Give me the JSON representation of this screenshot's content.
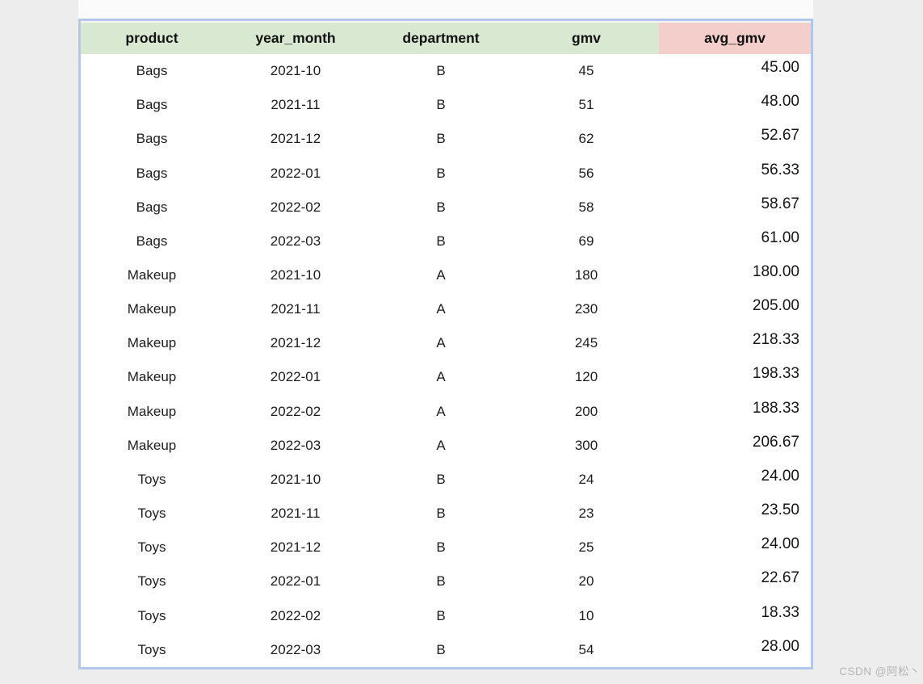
{
  "chart_data": {
    "type": "table",
    "columns": [
      "product",
      "year_month",
      "department",
      "gmv",
      "avg_gmv"
    ],
    "header_style": {
      "green_columns": [
        "product",
        "year_month",
        "department",
        "gmv"
      ],
      "pink_column": "avg_gmv"
    },
    "rows": [
      {
        "product": "Bags",
        "year_month": "2021-10",
        "department": "B",
        "gmv": "45",
        "avg_gmv": "45.00"
      },
      {
        "product": "Bags",
        "year_month": "2021-11",
        "department": "B",
        "gmv": "51",
        "avg_gmv": "48.00"
      },
      {
        "product": "Bags",
        "year_month": "2021-12",
        "department": "B",
        "gmv": "62",
        "avg_gmv": "52.67"
      },
      {
        "product": "Bags",
        "year_month": "2022-01",
        "department": "B",
        "gmv": "56",
        "avg_gmv": "56.33"
      },
      {
        "product": "Bags",
        "year_month": "2022-02",
        "department": "B",
        "gmv": "58",
        "avg_gmv": "58.67"
      },
      {
        "product": "Bags",
        "year_month": "2022-03",
        "department": "B",
        "gmv": "69",
        "avg_gmv": "61.00"
      },
      {
        "product": "Makeup",
        "year_month": "2021-10",
        "department": "A",
        "gmv": "180",
        "avg_gmv": "180.00"
      },
      {
        "product": "Makeup",
        "year_month": "2021-11",
        "department": "A",
        "gmv": "230",
        "avg_gmv": "205.00"
      },
      {
        "product": "Makeup",
        "year_month": "2021-12",
        "department": "A",
        "gmv": "245",
        "avg_gmv": "218.33"
      },
      {
        "product": "Makeup",
        "year_month": "2022-01",
        "department": "A",
        "gmv": "120",
        "avg_gmv": "198.33"
      },
      {
        "product": "Makeup",
        "year_month": "2022-02",
        "department": "A",
        "gmv": "200",
        "avg_gmv": "188.33"
      },
      {
        "product": "Makeup",
        "year_month": "2022-03",
        "department": "A",
        "gmv": "300",
        "avg_gmv": "206.67"
      },
      {
        "product": "Toys",
        "year_month": "2021-10",
        "department": "B",
        "gmv": "24",
        "avg_gmv": "24.00"
      },
      {
        "product": "Toys",
        "year_month": "2021-11",
        "department": "B",
        "gmv": "23",
        "avg_gmv": "23.50"
      },
      {
        "product": "Toys",
        "year_month": "2021-12",
        "department": "B",
        "gmv": "25",
        "avg_gmv": "24.00"
      },
      {
        "product": "Toys",
        "year_month": "2022-01",
        "department": "B",
        "gmv": "20",
        "avg_gmv": "22.67"
      },
      {
        "product": "Toys",
        "year_month": "2022-02",
        "department": "B",
        "gmv": "10",
        "avg_gmv": "18.33"
      },
      {
        "product": "Toys",
        "year_month": "2022-03",
        "department": "B",
        "gmv": "54",
        "avg_gmv": "28.00"
      }
    ]
  },
  "watermark": "CSDN @阿松丶",
  "colors": {
    "header_green": "#d9e8d1",
    "header_pink": "#f4cecb",
    "table_border_blue": "#b3c6ee",
    "page_background": "#ededed",
    "watermark_gray": "#b5b5b5"
  }
}
